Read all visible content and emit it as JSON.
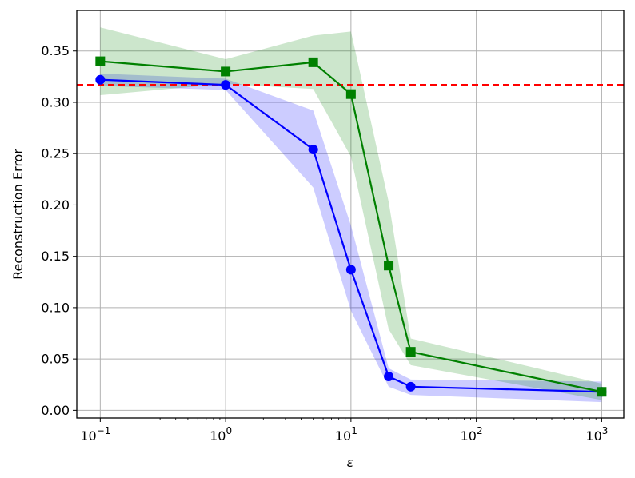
{
  "chart_data": {
    "type": "line",
    "xscale": "log",
    "xlabel": "ε",
    "ylabel": "Reconstruction Error",
    "xlim": [
      0.065,
      1500
    ],
    "ylim": [
      -0.0075,
      0.3895
    ],
    "grid": true,
    "x": [
      0.1,
      1,
      5,
      10,
      20,
      30,
      1000
    ],
    "series": [
      {
        "color": "#0000ff",
        "marker": "circle",
        "values": [
          0.322,
          0.317,
          0.254,
          0.137,
          0.033,
          0.023,
          0.018
        ],
        "band_upper": [
          0.328,
          0.323,
          0.292,
          0.18,
          0.041,
          0.03,
          0.028
        ],
        "band_lower": [
          0.316,
          0.312,
          0.217,
          0.097,
          0.023,
          0.015,
          0.008
        ]
      },
      {
        "color": "#008000",
        "marker": "square",
        "values": [
          0.34,
          0.33,
          0.339,
          0.308,
          0.141,
          0.057,
          0.018
        ],
        "band_upper": [
          0.373,
          0.342,
          0.365,
          0.369,
          0.203,
          0.07,
          0.026
        ],
        "band_lower": [
          0.307,
          0.318,
          0.313,
          0.247,
          0.079,
          0.044,
          0.01
        ]
      }
    ],
    "reference_line": {
      "y": 0.317,
      "color": "#ff0000",
      "style": "dashed"
    },
    "yticks": [
      {
        "value": 0.0,
        "label": "0.00"
      },
      {
        "value": 0.05,
        "label": "0.05"
      },
      {
        "value": 0.1,
        "label": "0.10"
      },
      {
        "value": 0.15,
        "label": "0.15"
      },
      {
        "value": 0.2,
        "label": "0.20"
      },
      {
        "value": 0.25,
        "label": "0.25"
      },
      {
        "value": 0.3,
        "label": "0.30"
      },
      {
        "value": 0.35,
        "label": "0.35"
      }
    ],
    "xticks": [
      {
        "value": 0.1,
        "base": "10",
        "exp": "−1"
      },
      {
        "value": 1,
        "base": "10",
        "exp": "0"
      },
      {
        "value": 10,
        "base": "10",
        "exp": "1"
      },
      {
        "value": 100,
        "base": "10",
        "exp": "2"
      },
      {
        "value": 1000,
        "base": "10",
        "exp": "3"
      }
    ]
  }
}
